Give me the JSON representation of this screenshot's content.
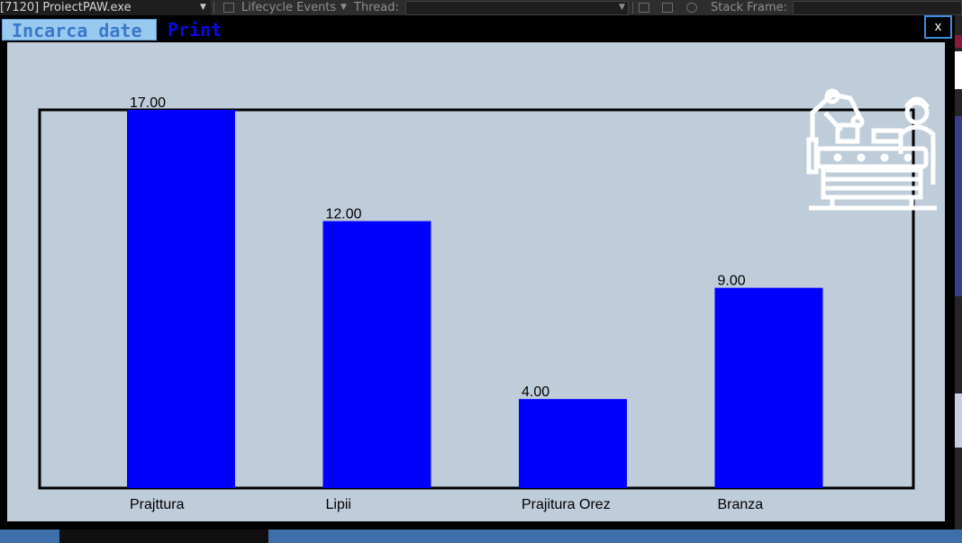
{
  "vs_toolbar": {
    "process": "[7120] ProiectPAW.exe",
    "lifecycle": "Lifecycle Events",
    "thread": "Thread:",
    "stack_frame": "Stack Frame:"
  },
  "menu": {
    "load_label": "Incarca date",
    "print_label": "Print"
  },
  "close_label": "x",
  "chart_data": {
    "type": "bar",
    "categories": [
      "Prajttura",
      "Lipii",
      "Prajitura Orez",
      "Branza"
    ],
    "values": [
      17,
      12,
      4,
      9
    ],
    "value_labels": [
      "17.00",
      "12.00",
      "4.00",
      "9.00"
    ],
    "ylim": [
      0,
      17
    ],
    "bar_color": "#0000ff",
    "background": "#bfccda",
    "axes_color": "#000000",
    "grid": false
  },
  "colors": {
    "form_background": "#000000",
    "menu_highlight": "#99c9ef",
    "print_text": "#0a0ae0"
  },
  "logo_icon": "factory-assembly-line-icon"
}
